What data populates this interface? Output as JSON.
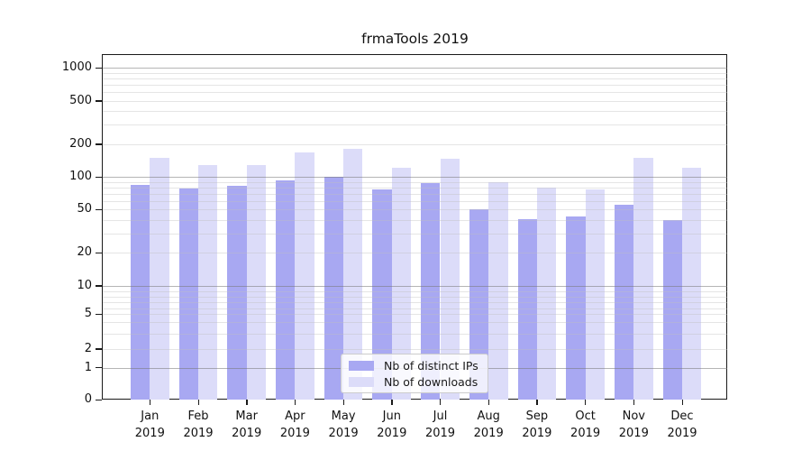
{
  "chart_data": {
    "type": "bar",
    "title": "frmaTools 2019",
    "categories": [
      "Jan",
      "Feb",
      "Mar",
      "Apr",
      "May",
      "Jun",
      "Jul",
      "Aug",
      "Sep",
      "Oct",
      "Nov",
      "Dec"
    ],
    "year_label": "2019",
    "series": [
      {
        "name": "Nb of distinct IPs",
        "color": "#a8a8f2",
        "values": [
          84,
          78,
          82,
          92,
          100,
          77,
          88,
          50,
          41,
          43,
          55,
          40
        ]
      },
      {
        "name": "Nb of downloads",
        "color": "#dcdcf9",
        "values": [
          148,
          128,
          128,
          168,
          180,
          120,
          146,
          89,
          80,
          76,
          149,
          120
        ]
      }
    ],
    "yticks": [
      0,
      1,
      2,
      5,
      10,
      20,
      50,
      100,
      200,
      500,
      1000
    ],
    "ylim": [
      0,
      1000
    ],
    "yscale": "symlog",
    "xlabel": "",
    "ylabel": "",
    "grid": "on",
    "legend_position": "lower center"
  }
}
